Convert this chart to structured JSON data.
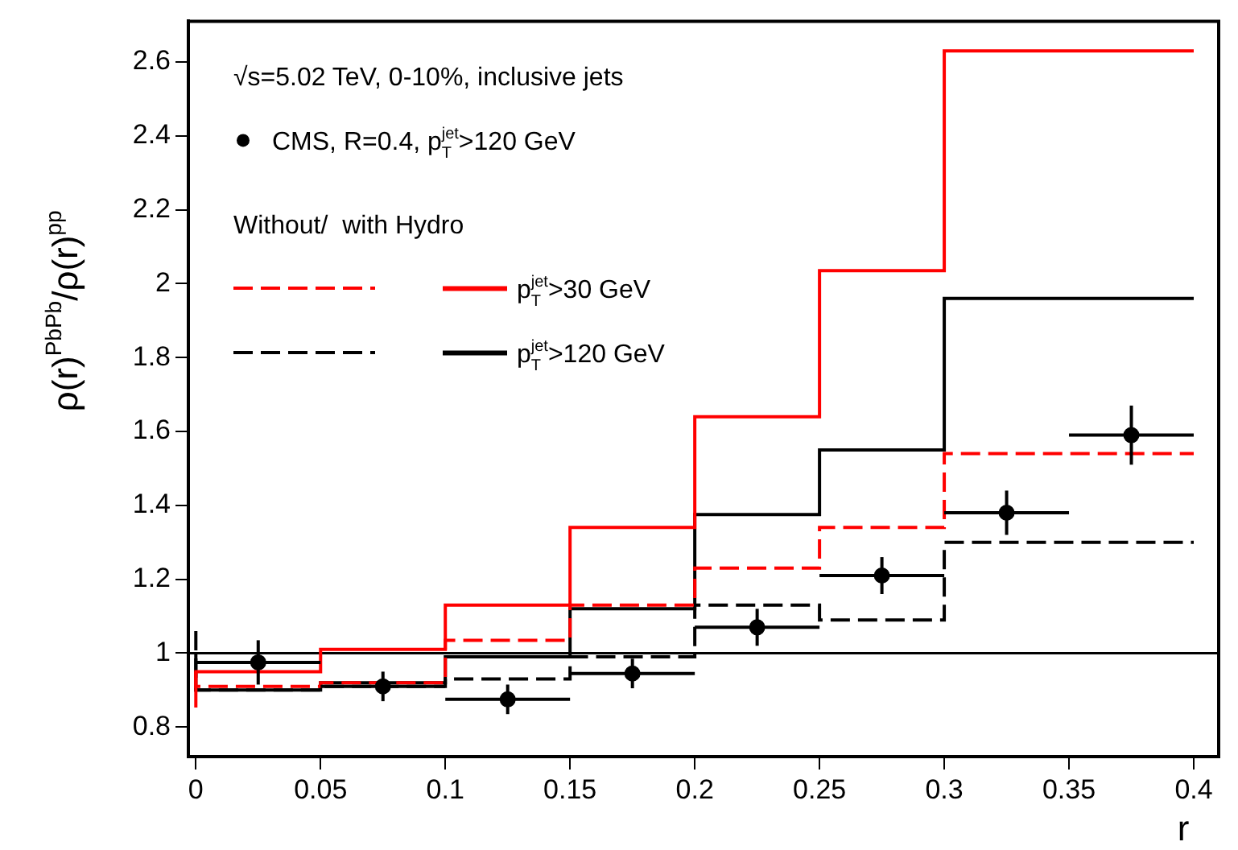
{
  "chart_data": {
    "type": "step",
    "xlabel": "r",
    "ylabel": "ρ(r)$^{PbPb}$/ρ(r)$^{pp}$",
    "annotations": [
      "√s=5.02 TeV, 0-10%, inclusive jets",
      "Without/  with Hydro"
    ],
    "x": [
      0,
      0.05,
      0.1,
      0.15,
      0.2,
      0.25,
      0.3,
      0.35,
      0.4
    ],
    "series": [
      {
        "type": "scatter",
        "name": "CMS, R=0.4, p$_{T}$$^{jet}$>120 GeV",
        "color": "#000000",
        "marker": "circle",
        "x": [
          0.025,
          0.075,
          0.125,
          0.175,
          0.225,
          0.275,
          0.325,
          0.375
        ],
        "values": [
          0.975,
          0.91,
          0.875,
          0.945,
          1.07,
          1.21,
          1.38,
          1.59
        ],
        "errors": [
          0.06,
          0.04,
          0.04,
          0.04,
          0.05,
          0.05,
          0.06,
          0.08
        ],
        "xerrors": [
          0.025,
          0.025,
          0.025,
          0.025,
          0.025,
          0.025,
          0.025,
          0.025
        ]
      },
      {
        "color": "#ff0000",
        "line_style": "dashed",
        "values": [
          0.95,
          0.91,
          0.92,
          1.035,
          1.13,
          1.23,
          1.34,
          1.54,
          1.54
        ]
      },
      {
        "name": "p$_{T}$$^{jet}$>30 GeV",
        "color": "#ff0000",
        "line_style": "solid",
        "values": [
          0.853,
          0.95,
          1.01,
          1.13,
          1.34,
          1.64,
          2.035,
          2.63,
          2.63
        ]
      },
      {
        "color": "#000000",
        "line_style": "dashed",
        "values": [
          1.06,
          0.9,
          0.91,
          0.93,
          0.99,
          1.13,
          1.09,
          1.3,
          1.3
        ]
      },
      {
        "name": "p$_{T}$$^{jet}$>120 GeV",
        "color": "#000000",
        "line_style": "solid",
        "values": [
          1.0,
          0.9,
          0.92,
          0.99,
          1.12,
          1.375,
          1.55,
          1.96,
          1.96
        ]
      }
    ],
    "ref_lines": [
      {
        "axis": "y",
        "value": 1,
        "color": "#000000"
      }
    ],
    "xlim": [
      -0.003,
      0.41
    ],
    "ylim": [
      0.72,
      2.71
    ],
    "xticks": [
      0,
      0.05,
      0.1,
      0.15,
      0.2,
      0.25,
      0.3,
      0.35,
      0.4
    ],
    "yticks": [
      0.8,
      1,
      1.2,
      1.4,
      1.6,
      1.8,
      2,
      2.2,
      2.4,
      2.6
    ],
    "grid": false,
    "legend": "top left"
  }
}
